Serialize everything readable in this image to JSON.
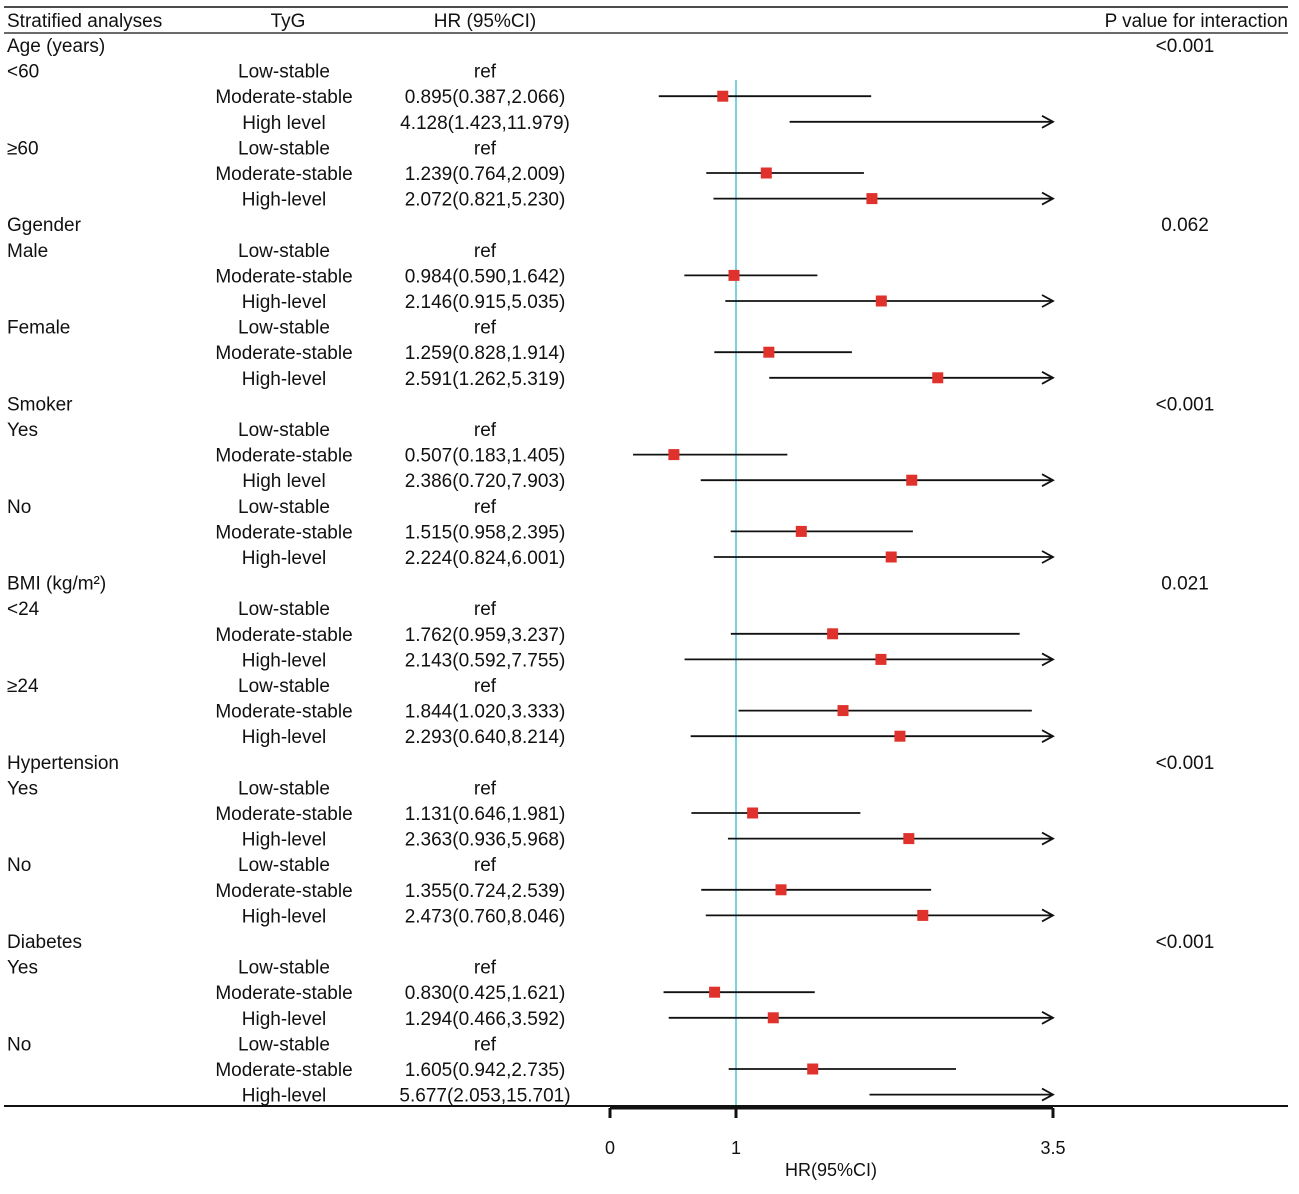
{
  "chart_data": {
    "type": "forest",
    "title": "",
    "columns": {
      "stratified": "Stratified analyses",
      "tyg": "TyG",
      "hr": "HR (95%CI)",
      "p": "P value for interaction"
    },
    "xlabel": "HR(95%CI)",
    "xlim": [
      0,
      3.5
    ],
    "xticks": [
      {
        "value": 0,
        "label": "0"
      },
      {
        "value": 1,
        "label": "1"
      },
      {
        "value": 3.5,
        "label": "3.5"
      }
    ],
    "reference_line": 1,
    "rows": [
      {
        "group": "Age (years)",
        "p": "<0.001"
      },
      {
        "sub": "<60",
        "tyg": "Low-stable",
        "hr_text": "ref"
      },
      {
        "tyg": "Moderate-stable",
        "hr_text": "0.895(0.387,2.066)",
        "hr": 0.895,
        "lo": 0.387,
        "hi": 2.066
      },
      {
        "tyg": "High level",
        "hr_text": "4.128(1.423,11.979)",
        "hr": 4.128,
        "lo": 1.423,
        "hi": 11.979
      },
      {
        "sub": "≥60",
        "tyg": "Low-stable",
        "hr_text": "ref"
      },
      {
        "tyg": "Moderate-stable",
        "hr_text": "1.239(0.764,2.009)",
        "hr": 1.239,
        "lo": 0.764,
        "hi": 2.009
      },
      {
        "tyg": "High-level",
        "hr_text": "2.072(0.821,5.230)",
        "hr": 2.072,
        "lo": 0.821,
        "hi": 5.23
      },
      {
        "group": "Ggender",
        "p": "0.062"
      },
      {
        "sub": "Male",
        "tyg": "Low-stable",
        "hr_text": "ref"
      },
      {
        "tyg": "Moderate-stable",
        "hr_text": "0.984(0.590,1.642)",
        "hr": 0.984,
        "lo": 0.59,
        "hi": 1.642
      },
      {
        "tyg": "High-level",
        "hr_text": "2.146(0.915,5.035)",
        "hr": 2.146,
        "lo": 0.915,
        "hi": 5.035
      },
      {
        "sub": "Female",
        "tyg": "Low-stable",
        "hr_text": "ref"
      },
      {
        "tyg": "Moderate-stable",
        "hr_text": "1.259(0.828,1.914)",
        "hr": 1.259,
        "lo": 0.828,
        "hi": 1.914
      },
      {
        "tyg": "High-level",
        "hr_text": "2.591(1.262,5.319)",
        "hr": 2.591,
        "lo": 1.262,
        "hi": 5.319
      },
      {
        "group": "Smoker",
        "p": "<0.001"
      },
      {
        "sub": "Yes",
        "tyg": "Low-stable",
        "hr_text": "ref"
      },
      {
        "tyg": "Moderate-stable",
        "hr_text": "0.507(0.183,1.405)",
        "hr": 0.507,
        "lo": 0.183,
        "hi": 1.405
      },
      {
        "tyg": "High level",
        "hr_text": "2.386(0.720,7.903)",
        "hr": 2.386,
        "lo": 0.72,
        "hi": 7.903
      },
      {
        "sub": "No",
        "tyg": "Low-stable",
        "hr_text": "ref"
      },
      {
        "tyg": "Moderate-stable",
        "hr_text": "1.515(0.958,2.395)",
        "hr": 1.515,
        "lo": 0.958,
        "hi": 2.395
      },
      {
        "tyg": "High-level",
        "hr_text": "2.224(0.824,6.001)",
        "hr": 2.224,
        "lo": 0.824,
        "hi": 6.001
      },
      {
        "group": "BMI (kg/m²)",
        "p": "0.021"
      },
      {
        "sub": "<24",
        "tyg": "Low-stable",
        "hr_text": "ref"
      },
      {
        "tyg": "Moderate-stable",
        "hr_text": "1.762(0.959,3.237)",
        "hr": 1.762,
        "lo": 0.959,
        "hi": 3.237
      },
      {
        "tyg": "High-level",
        "hr_text": "2.143(0.592,7.755)",
        "hr": 2.143,
        "lo": 0.592,
        "hi": 7.755
      },
      {
        "sub": "≥24",
        "tyg": "Low-stable",
        "hr_text": "ref"
      },
      {
        "tyg": "Moderate-stable",
        "hr_text": "1.844(1.020,3.333)",
        "hr": 1.844,
        "lo": 1.02,
        "hi": 3.333
      },
      {
        "tyg": "High-level",
        "hr_text": "2.293(0.640,8.214)",
        "hr": 2.293,
        "lo": 0.64,
        "hi": 8.214
      },
      {
        "group": "Hypertension",
        "p": "<0.001"
      },
      {
        "sub": "Yes",
        "tyg": "Low-stable",
        "hr_text": "ref"
      },
      {
        "tyg": "Moderate-stable",
        "hr_text": "1.131(0.646,1.981)",
        "hr": 1.131,
        "lo": 0.646,
        "hi": 1.981
      },
      {
        "tyg": "High-level",
        "hr_text": "2.363(0.936,5.968)",
        "hr": 2.363,
        "lo": 0.936,
        "hi": 5.968
      },
      {
        "sub": "No",
        "tyg": "Low-stable",
        "hr_text": "ref"
      },
      {
        "tyg": "Moderate-stable",
        "hr_text": "1.355(0.724,2.539)",
        "hr": 1.355,
        "lo": 0.724,
        "hi": 2.539
      },
      {
        "tyg": "High-level",
        "hr_text": "2.473(0.760,8.046)",
        "hr": 2.473,
        "lo": 0.76,
        "hi": 8.046
      },
      {
        "group": "Diabetes",
        "p": "<0.001"
      },
      {
        "sub": "Yes",
        "tyg": "Low-stable",
        "hr_text": "ref"
      },
      {
        "tyg": "Moderate-stable",
        "hr_text": "0.830(0.425,1.621)",
        "hr": 0.83,
        "lo": 0.425,
        "hi": 1.621
      },
      {
        "tyg": "High-level",
        "hr_text": "1.294(0.466,3.592)",
        "hr": 1.294,
        "lo": 0.466,
        "hi": 3.592
      },
      {
        "sub": "No",
        "tyg": "Low-stable",
        "hr_text": "ref"
      },
      {
        "tyg": "Moderate-stable",
        "hr_text": "1.605(0.942,2.735)",
        "hr": 1.605,
        "lo": 0.942,
        "hi": 2.735
      },
      {
        "tyg": "High-level",
        "hr_text": "5.677(2.053,15.701)",
        "hr": 5.677,
        "lo": 2.053,
        "hi": 15.701
      }
    ],
    "colors": {
      "point": "#e0322c",
      "reference_line": "#3fc0d0",
      "line": "#111111"
    }
  }
}
